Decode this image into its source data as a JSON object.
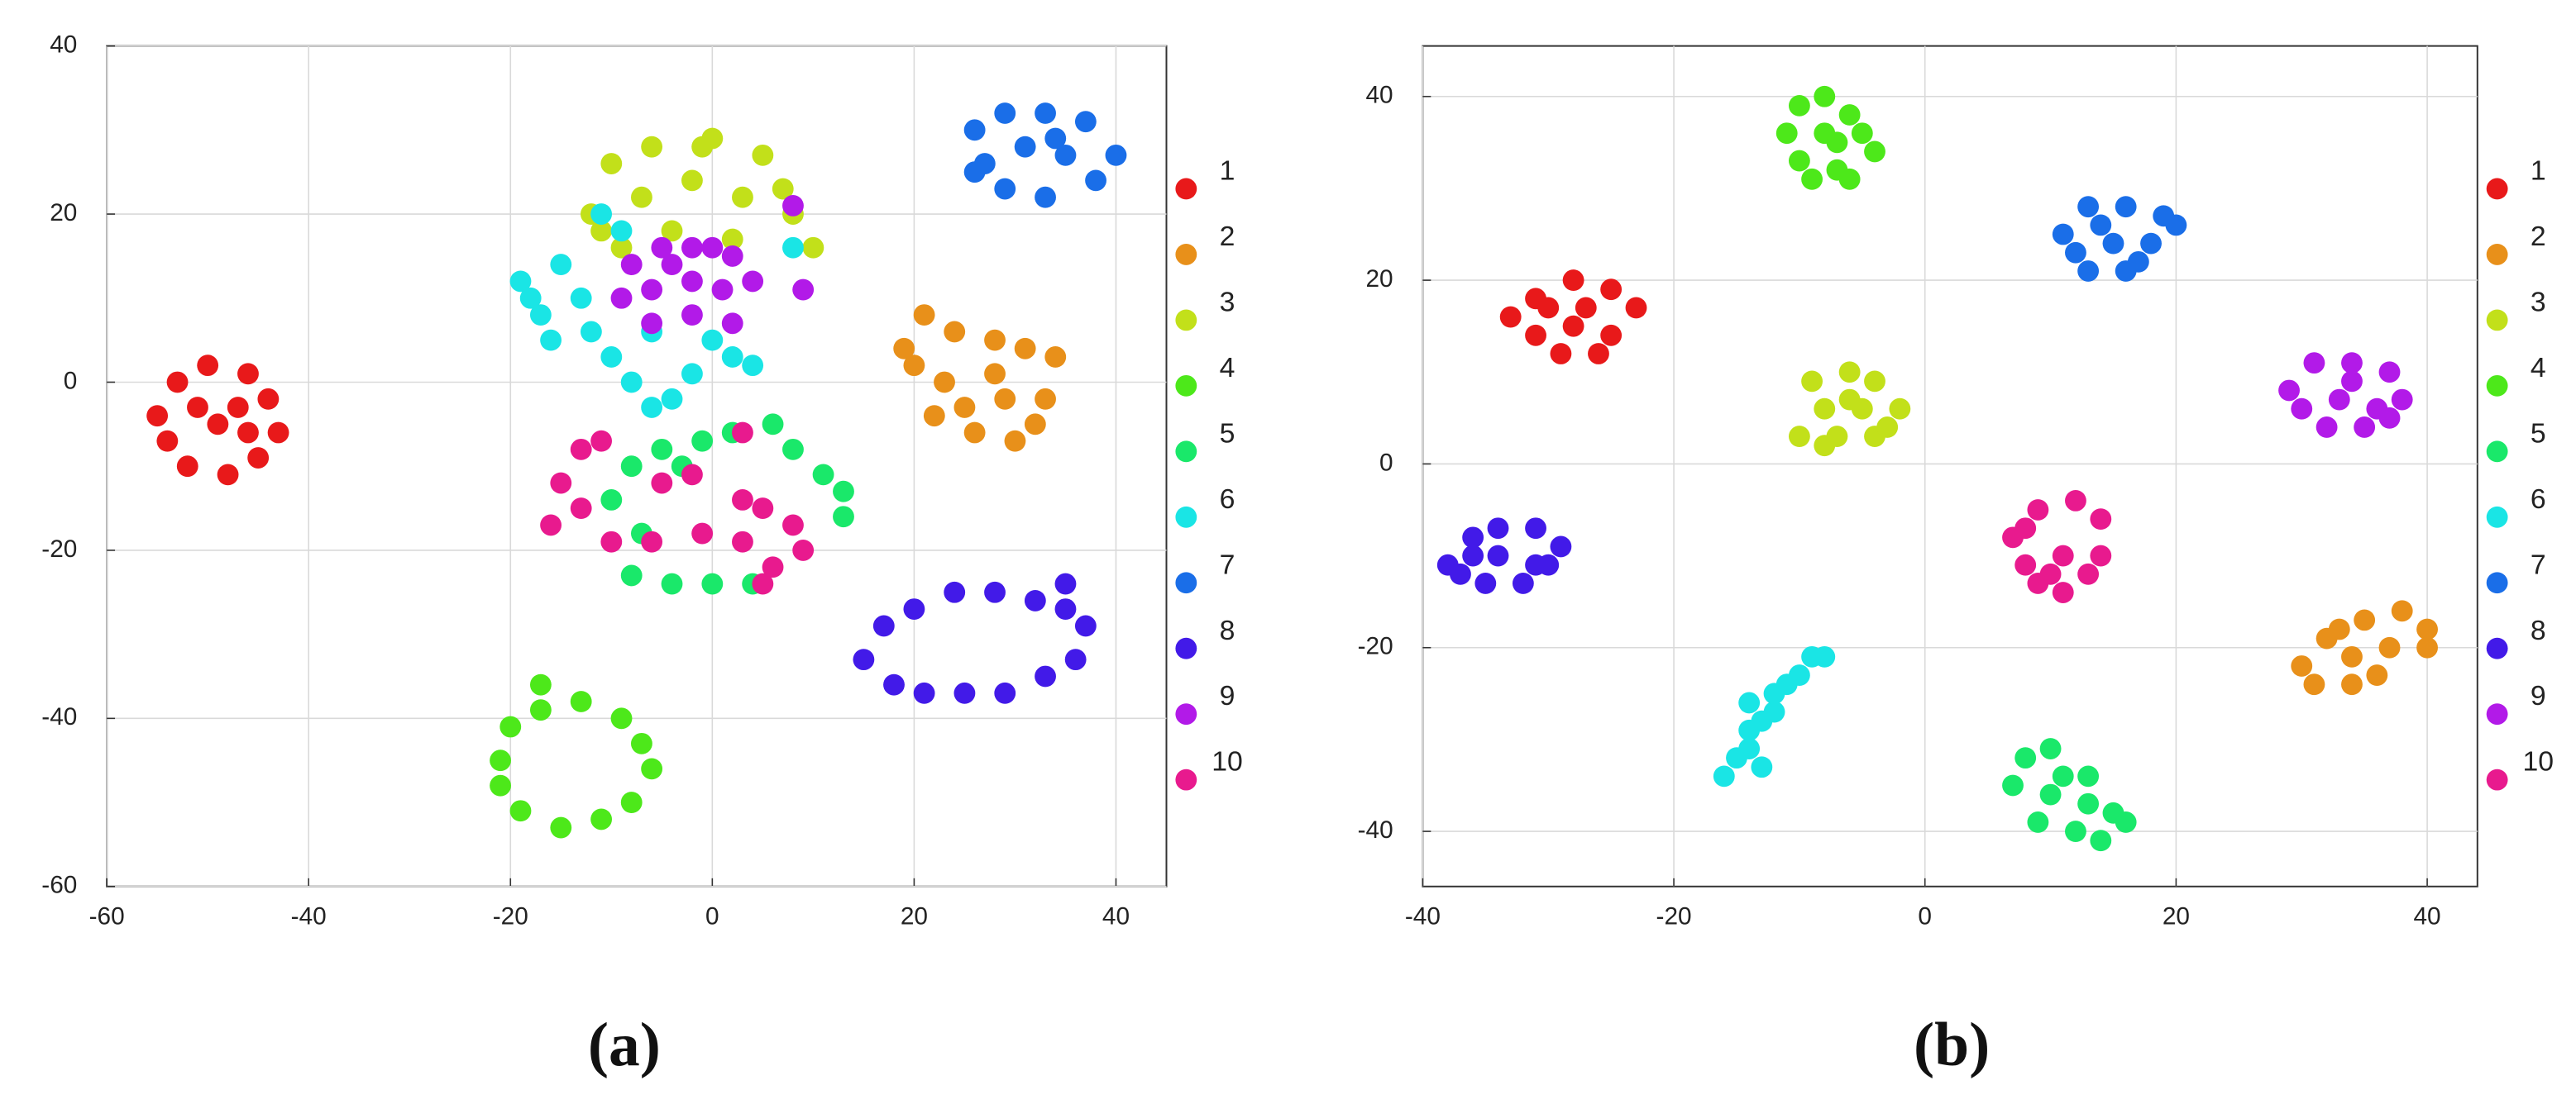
{
  "chart_data": [
    {
      "type": "scatter",
      "caption": "(a)",
      "xlim": [
        -60,
        45
      ],
      "ylim": [
        -60,
        40
      ],
      "xticks": [
        -60,
        -40,
        -20,
        0,
        20,
        40
      ],
      "yticks": [
        -60,
        -40,
        -20,
        0,
        20,
        40
      ],
      "grid": true,
      "legend": "right",
      "series": [
        {
          "name": "1",
          "color": "#e8191a",
          "x": [
            -55,
            -53,
            -50,
            -46,
            -44,
            -43,
            -45,
            -48,
            -52,
            -54,
            -49,
            -47,
            -51,
            -46
          ],
          "y": [
            -4,
            0,
            2,
            1,
            -2,
            -6,
            -9,
            -11,
            -10,
            -7,
            -5,
            -3,
            -3,
            -6
          ]
        },
        {
          "name": "2",
          "color": "#e8901a",
          "x": [
            21,
            24,
            28,
            31,
            34,
            20,
            23,
            28,
            33,
            22,
            26,
            30,
            32,
            25,
            19,
            29
          ],
          "y": [
            8,
            6,
            5,
            4,
            3,
            2,
            0,
            1,
            -2,
            -4,
            -6,
            -7,
            -5,
            -3,
            4,
            -2
          ]
        },
        {
          "name": "3",
          "color": "#c2e01a",
          "x": [
            -10,
            -6,
            0,
            5,
            -12,
            -7,
            -2,
            3,
            8,
            -9,
            -4,
            2,
            10,
            -1,
            7,
            -11
          ],
          "y": [
            26,
            28,
            29,
            27,
            20,
            22,
            24,
            22,
            20,
            16,
            18,
            17,
            16,
            28,
            23,
            18
          ]
        },
        {
          "name": "4",
          "color": "#4de81a",
          "x": [
            -21,
            -20,
            -17,
            -13,
            -9,
            -7,
            -6,
            -8,
            -11,
            -15,
            -19,
            -21,
            -17
          ],
          "y": [
            -45,
            -41,
            -39,
            -38,
            -40,
            -43,
            -46,
            -50,
            -52,
            -53,
            -51,
            -48,
            -36
          ]
        },
        {
          "name": "5",
          "color": "#1ae86a",
          "x": [
            -8,
            -5,
            -1,
            2,
            6,
            8,
            11,
            13,
            13,
            -10,
            -7,
            -8,
            -4,
            0,
            4,
            -3
          ],
          "y": [
            -10,
            -8,
            -7,
            -6,
            -5,
            -8,
            -11,
            -13,
            -16,
            -14,
            -18,
            -23,
            -24,
            -24,
            -24,
            -10
          ]
        },
        {
          "name": "6",
          "color": "#1ae5e5",
          "x": [
            -19,
            -17,
            -15,
            -13,
            -12,
            -10,
            -8,
            -6,
            -4,
            -2,
            0,
            2,
            -16,
            -9,
            -18,
            -6,
            4,
            8,
            -11
          ],
          "y": [
            12,
            8,
            14,
            10,
            6,
            3,
            0,
            -3,
            -2,
            1,
            5,
            3,
            5,
            18,
            10,
            6,
            2,
            16,
            20
          ]
        },
        {
          "name": "7",
          "color": "#1a6ee8",
          "x": [
            26,
            29,
            33,
            37,
            40,
            27,
            31,
            35,
            38,
            29,
            33,
            26,
            34
          ],
          "y": [
            30,
            32,
            32,
            31,
            27,
            26,
            28,
            27,
            24,
            23,
            22,
            25,
            29
          ]
        },
        {
          "name": "8",
          "color": "#421ae8",
          "x": [
            15,
            17,
            20,
            24,
            28,
            32,
            35,
            37,
            36,
            33,
            29,
            25,
            21,
            18,
            35
          ],
          "y": [
            -33,
            -29,
            -27,
            -25,
            -25,
            -26,
            -27,
            -29,
            -33,
            -35,
            -37,
            -37,
            -37,
            -36,
            -24
          ]
        },
        {
          "name": "9",
          "color": "#b21ae8",
          "x": [
            -8,
            -5,
            -2,
            2,
            -9,
            -6,
            -2,
            1,
            4,
            -6,
            -2,
            2,
            8,
            9,
            -4,
            0
          ],
          "y": [
            14,
            16,
            16,
            15,
            10,
            11,
            12,
            11,
            12,
            7,
            8,
            7,
            21,
            11,
            14,
            16
          ]
        },
        {
          "name": "10",
          "color": "#e81a8e",
          "x": [
            -13,
            -15,
            -16,
            -13,
            -10,
            -6,
            -1,
            -5,
            -2,
            3,
            5,
            8,
            9,
            6,
            3,
            5,
            3,
            -11
          ],
          "y": [
            -8,
            -12,
            -17,
            -15,
            -19,
            -19,
            -18,
            -12,
            -11,
            -14,
            -15,
            -17,
            -20,
            -22,
            -19,
            -24,
            -6,
            -7
          ]
        }
      ]
    },
    {
      "type": "scatter",
      "caption": "(b)",
      "xlim": [
        -40,
        44
      ],
      "ylim": [
        -46,
        45.5
      ],
      "xticks": [
        -40,
        -20,
        0,
        20,
        40
      ],
      "yticks": [
        -40,
        -20,
        0,
        20,
        40
      ],
      "grid": true,
      "legend": "right",
      "series": [
        {
          "name": "1",
          "color": "#e8191a",
          "x": [
            -33,
            -31,
            -28,
            -25,
            -23,
            -31,
            -28,
            -25,
            -29,
            -26,
            -30,
            -27
          ],
          "y": [
            16,
            18,
            20,
            19,
            17,
            14,
            15,
            14,
            12,
            12,
            17,
            17
          ]
        },
        {
          "name": "2",
          "color": "#e8901a",
          "x": [
            30,
            32,
            35,
            38,
            40,
            34,
            37,
            40,
            31,
            34,
            36,
            33
          ],
          "y": [
            -22,
            -19,
            -17,
            -16,
            -18,
            -21,
            -20,
            -20,
            -24,
            -24,
            -23,
            -18
          ]
        },
        {
          "name": "3",
          "color": "#c2e01a",
          "x": [
            -9,
            -6,
            -4,
            -8,
            -5,
            -2,
            -10,
            -7,
            -4,
            -8,
            -6,
            -3
          ],
          "y": [
            9,
            10,
            9,
            6,
            6,
            6,
            3,
            3,
            3,
            2,
            7,
            4
          ]
        },
        {
          "name": "4",
          "color": "#4de81a",
          "x": [
            -10,
            -8,
            -6,
            -11,
            -8,
            -5,
            -4,
            -10,
            -7,
            -9,
            -6,
            -7
          ],
          "y": [
            39,
            40,
            38,
            36,
            36,
            36,
            34,
            33,
            32,
            31,
            31,
            35
          ]
        },
        {
          "name": "5",
          "color": "#1ae86a",
          "x": [
            8,
            10,
            13,
            7,
            10,
            13,
            15,
            9,
            12,
            14,
            16,
            11
          ],
          "y": [
            -32,
            -31,
            -34,
            -35,
            -36,
            -37,
            -38,
            -39,
            -40,
            -41,
            -39,
            -34
          ]
        },
        {
          "name": "6",
          "color": "#1ae5e5",
          "x": [
            -16,
            -15,
            -14,
            -14,
            -13,
            -12,
            -12,
            -11,
            -10,
            -9,
            -8,
            -13,
            -14
          ],
          "y": [
            -34,
            -32,
            -31,
            -29,
            -28,
            -27,
            -25,
            -24,
            -23,
            -21,
            -21,
            -33,
            -26
          ]
        },
        {
          "name": "7",
          "color": "#1a6ee8",
          "x": [
            11,
            13,
            16,
            19,
            20,
            12,
            15,
            18,
            13,
            16,
            14,
            17
          ],
          "y": [
            25,
            28,
            28,
            27,
            26,
            23,
            24,
            24,
            21,
            21,
            26,
            22
          ]
        },
        {
          "name": "8",
          "color": "#421ae8",
          "x": [
            -38,
            -36,
            -34,
            -31,
            -29,
            -37,
            -34,
            -31,
            -35,
            -32,
            -36,
            -30
          ],
          "y": [
            -11,
            -8,
            -7,
            -7,
            -9,
            -12,
            -10,
            -11,
            -13,
            -13,
            -10,
            -11
          ]
        },
        {
          "name": "9",
          "color": "#b21ae8",
          "x": [
            29,
            31,
            34,
            37,
            38,
            30,
            33,
            36,
            32,
            35,
            34,
            37
          ],
          "y": [
            8,
            11,
            11,
            10,
            7,
            6,
            7,
            6,
            4,
            4,
            9,
            5
          ]
        },
        {
          "name": "10",
          "color": "#e81a8e",
          "x": [
            7,
            9,
            12,
            14,
            8,
            11,
            14,
            9,
            11,
            13,
            8,
            10
          ],
          "y": [
            -8,
            -5,
            -4,
            -6,
            -11,
            -10,
            -10,
            -13,
            -14,
            -12,
            -7,
            -12
          ]
        }
      ]
    }
  ]
}
